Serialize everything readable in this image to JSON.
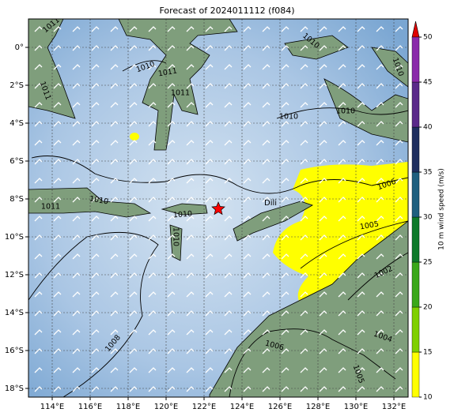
{
  "title": "Forecast of 2024011112 (f084)",
  "map": {
    "lon_labels": [
      "114°E",
      "116°E",
      "118°E",
      "120°E",
      "122°E",
      "124°E",
      "126°E",
      "128°E",
      "130°E",
      "132°E"
    ],
    "lat_labels": [
      "0°",
      "2°S",
      "4°S",
      "6°S",
      "8°S",
      "10°S",
      "12°S",
      "14°S",
      "16°S",
      "18°S"
    ],
    "contour_labels": [
      "1011",
      "1010",
      "1010",
      "1011",
      "1010",
      "1011",
      "1011",
      "1010",
      "1010",
      "1010",
      "1011",
      "1010",
      "1010",
      "1006",
      "1005",
      "1002",
      "1008",
      "1006",
      "1004",
      "1005"
    ],
    "place_label": "Dili"
  },
  "colorbar": {
    "label": "10 m wind speed (m/s)",
    "ticks": [
      "10",
      "15",
      "20",
      "25",
      "30",
      "35",
      "40",
      "45",
      "50"
    ]
  }
}
